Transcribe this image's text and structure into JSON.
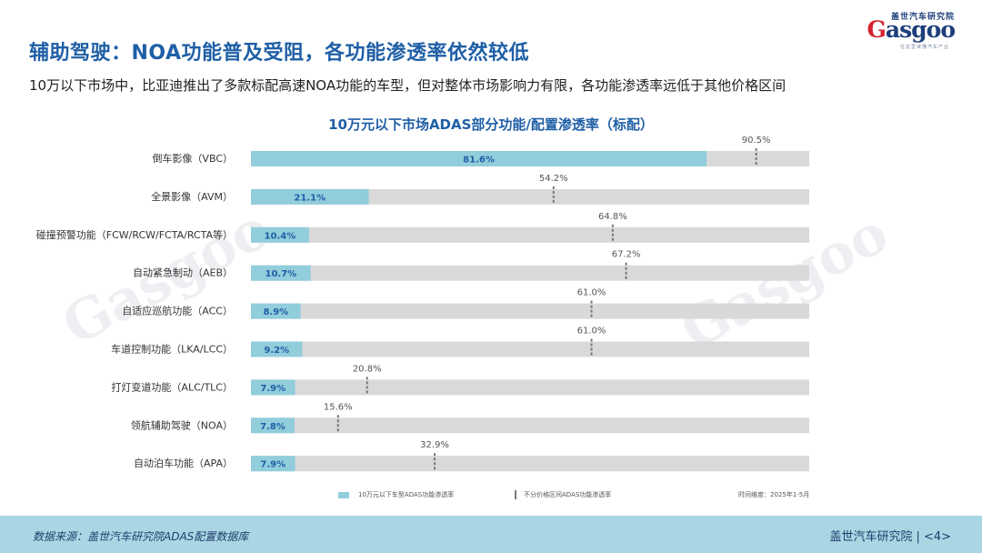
{
  "header": {
    "title": "辅助驾驶：NOA功能普及受阻，各功能渗透率依然较低",
    "subtitle": "10万以下市场中，比亚迪推出了多款标配高速NOA功能的车型，但对整体市场影响力有限，各功能渗透率远低于其他价格区间"
  },
  "logo": {
    "cn": "盖世汽车研究院",
    "en_a": "G",
    "en_b": "asgoo",
    "tagline": "在这里读懂汽车产业"
  },
  "watermark": "Gasgoo",
  "chart_data": {
    "type": "bar",
    "orientation": "horizontal",
    "title": "10万元以下市场ADAS部分功能/配置渗透率（标配）",
    "categories": [
      "倒车影像（VBC）",
      "全景影像（AVM）",
      "碰撞预警功能（FCW/RCW/FCTA/RCTA等）",
      "自动紧急制动（AEB）",
      "自适应巡航功能（ACC）",
      "车道控制功能（LKA/LCC）",
      "打灯变道功能（ALC/TLC）",
      "领航辅助驾驶（NOA）",
      "自动泊车功能（APA）"
    ],
    "series": [
      {
        "name": "10万元以下车型ADAS功能渗透率",
        "values": [
          81.6,
          21.1,
          10.4,
          10.7,
          8.9,
          9.2,
          7.9,
          7.8,
          7.9
        ],
        "labels": [
          "81.6%",
          "21.1%",
          "10.4%",
          "10.7%",
          "8.9%",
          "9.2%",
          "7.9%",
          "7.8%",
          "7.9%"
        ],
        "color": "#92cddc"
      },
      {
        "name": "不分价格区间ADAS功能渗透率",
        "values": [
          90.5,
          54.2,
          64.8,
          67.2,
          61.0,
          61.0,
          20.8,
          15.6,
          32.9
        ],
        "labels": [
          "90.5%",
          "54.2%",
          "64.8%",
          "67.2%",
          "61.0%",
          "61.0%",
          "20.8%",
          "15.6%",
          "32.9%"
        ],
        "color": "#777777"
      }
    ],
    "background_color": "#d9d9d9",
    "xlim": [
      0,
      100
    ],
    "grid": false,
    "legend_position": "bottom"
  },
  "legend": {
    "item_a": "10万元以下车型ADAS功能渗透率",
    "item_b": "不分价格区间ADAS功能渗透率",
    "note": "时间维度：2025年1-5月"
  },
  "footer": {
    "source": "数据来源：盖世汽车研究院ADAS配置数据库",
    "org": "盖世汽车研究院",
    "separator": "|",
    "page": "<4>"
  }
}
